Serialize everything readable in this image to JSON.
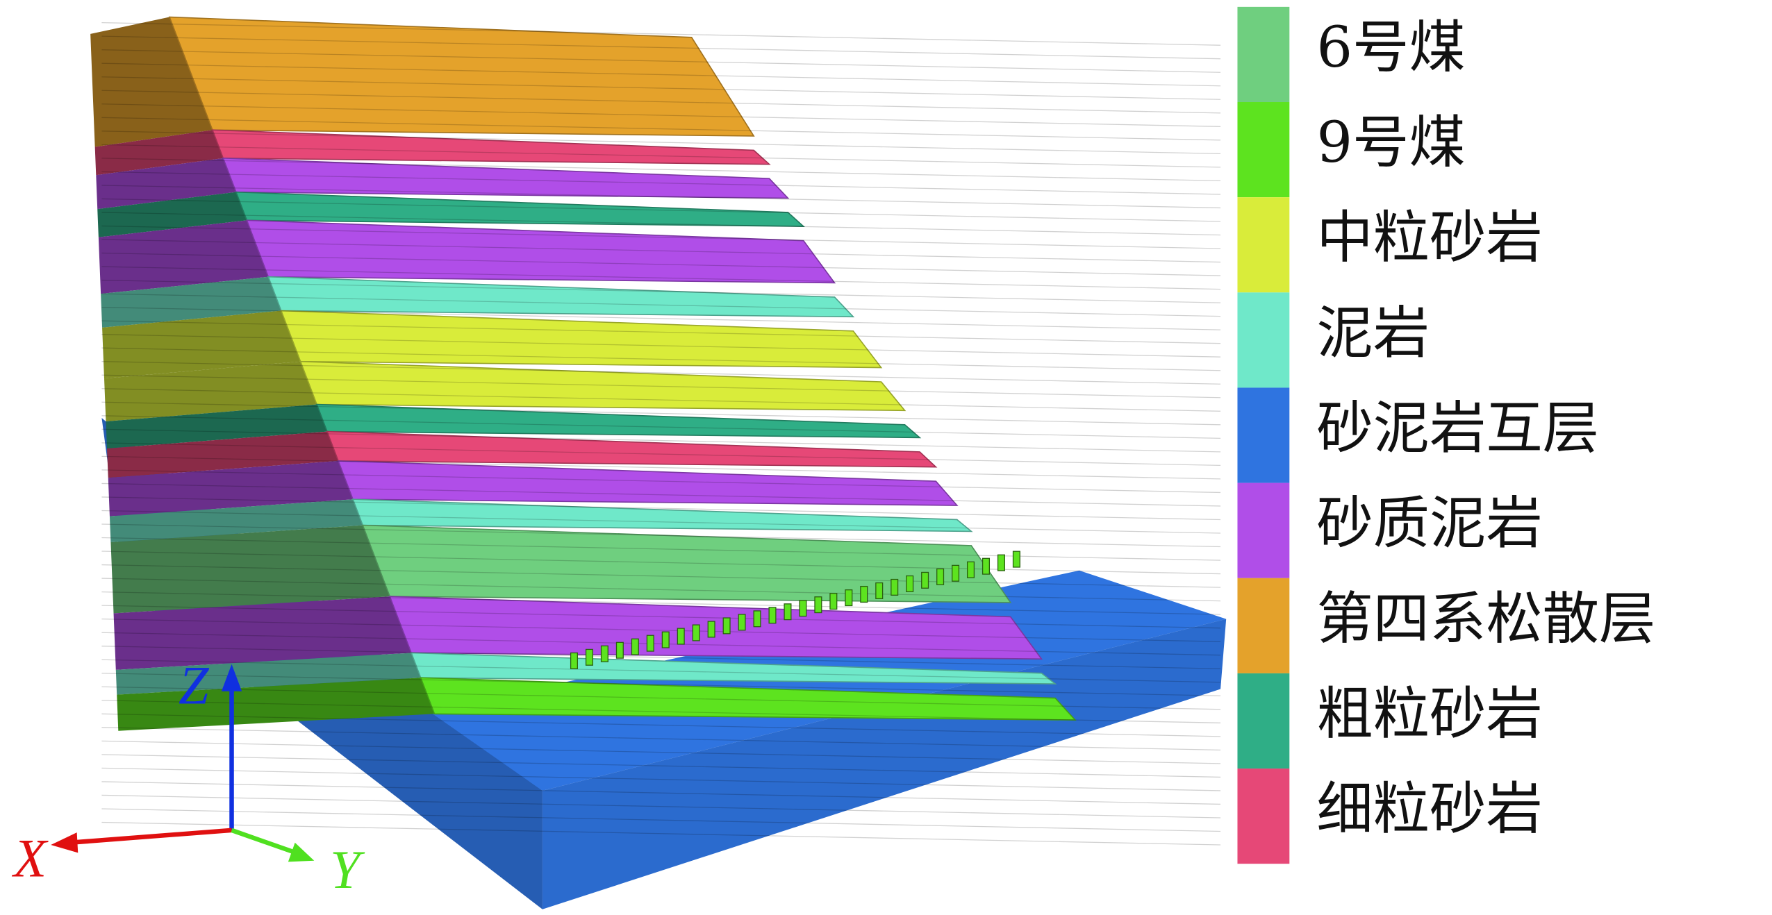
{
  "legend": [
    {
      "label": "6号煤",
      "color": "#6fcf7f"
    },
    {
      "label": "9号煤",
      "color": "#5de31f"
    },
    {
      "label": "中粒砂岩",
      "color": "#d9ec3a"
    },
    {
      "label": "泥岩",
      "color": "#6fe8c9"
    },
    {
      "label": "砂泥岩互层",
      "color": "#2f74e0"
    },
    {
      "label": "砂质泥岩",
      "color": "#b04ee8"
    },
    {
      "label": "第四系松散层",
      "color": "#e4a22b"
    },
    {
      "label": "粗粒砂岩",
      "color": "#2fae86"
    },
    {
      "label": "细粒砂岩",
      "color": "#e64877"
    }
  ],
  "axes": {
    "x": "X",
    "y": "Y",
    "z": "Z"
  }
}
